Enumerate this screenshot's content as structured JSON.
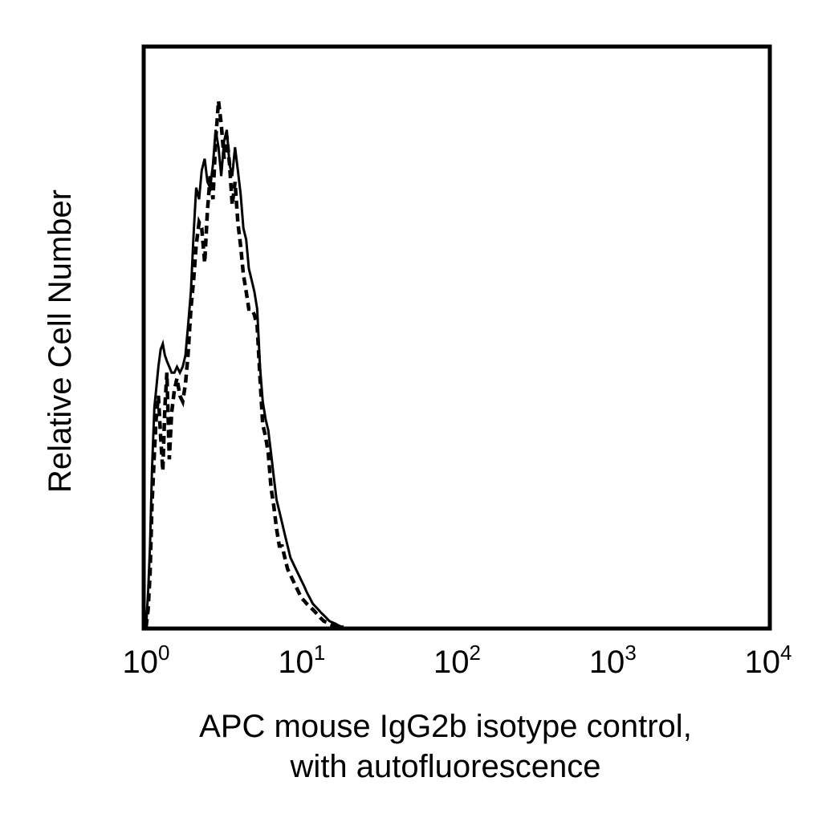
{
  "chart_data": {
    "type": "area",
    "xscale": "log",
    "xlim": [
      1,
      10000
    ],
    "ylim": [
      0,
      100
    ],
    "grid": false,
    "legend": "none",
    "xlabel_lines": [
      "APC mouse IgG2b isotype control,",
      "with autofluorescence"
    ],
    "ylabel": "Relative Cell Number",
    "yticks_shown": false,
    "xticks": [
      {
        "value": 1,
        "base": "10",
        "exp": "0"
      },
      {
        "value": 10,
        "base": "10",
        "exp": "1"
      },
      {
        "value": 100,
        "base": "10",
        "exp": "2"
      },
      {
        "value": 1000,
        "base": "10",
        "exp": "3"
      },
      {
        "value": 10000,
        "base": "10",
        "exp": "4"
      }
    ],
    "series": [
      {
        "style": "solid",
        "x": [
          1.0,
          1.03,
          1.06,
          1.09,
          1.13,
          1.16,
          1.2,
          1.24,
          1.28,
          1.32,
          1.36,
          1.41,
          1.46,
          1.52,
          1.58,
          1.65,
          1.72,
          1.79,
          1.86,
          1.94,
          2.02,
          2.1,
          2.19,
          2.28,
          2.38,
          2.48,
          2.58,
          2.69,
          2.8,
          2.92,
          3.04,
          3.17,
          3.3,
          3.44,
          3.58,
          3.73,
          3.89,
          4.05,
          4.22,
          4.4,
          4.58,
          4.77,
          4.97,
          5.18,
          5.4,
          5.62,
          5.86,
          6.1,
          6.36,
          6.62,
          6.9,
          7.19,
          7.49,
          7.8,
          8.13,
          8.47,
          8.82,
          9.19,
          9.57,
          9.97,
          10.4,
          10.8,
          11.3,
          11.8,
          12.3,
          12.8,
          13.3,
          13.9,
          14.5,
          15.1,
          15.7,
          16.4,
          17.1,
          17.8,
          18.6
        ],
        "values": [
          0,
          6,
          14,
          27,
          38,
          41,
          45,
          48,
          49,
          47,
          46,
          45,
          44,
          44,
          45,
          44,
          45,
          47,
          52,
          58,
          68,
          76,
          74,
          79,
          81,
          77,
          76,
          80,
          86,
          83,
          78,
          84,
          86,
          80,
          78,
          83,
          79,
          75,
          69,
          67,
          62,
          60,
          58,
          55,
          45,
          39,
          36,
          34,
          30,
          26,
          22,
          20,
          18,
          16,
          14,
          12,
          11,
          10,
          9,
          8,
          7,
          6,
          5,
          4,
          3.5,
          3,
          2.5,
          2,
          1.5,
          1,
          0.8,
          0.6,
          0.3,
          0.1,
          0
        ]
      },
      {
        "style": "dashed",
        "x": [
          1.0,
          1.03,
          1.06,
          1.09,
          1.13,
          1.16,
          1.2,
          1.24,
          1.28,
          1.32,
          1.36,
          1.41,
          1.46,
          1.52,
          1.58,
          1.65,
          1.72,
          1.79,
          1.86,
          1.94,
          2.02,
          2.1,
          2.19,
          2.28,
          2.38,
          2.48,
          2.58,
          2.69,
          2.8,
          2.92,
          3.04,
          3.17,
          3.3,
          3.44,
          3.58,
          3.73,
          3.89,
          4.05,
          4.22,
          4.4,
          4.58,
          4.77,
          4.97,
          5.18,
          5.4,
          5.62,
          5.86,
          6.1,
          6.36,
          6.62,
          6.9,
          7.19,
          7.49,
          7.8,
          8.13,
          8.47,
          8.82,
          9.19,
          9.57,
          9.97,
          10.4,
          10.8,
          11.3,
          11.8,
          12.3,
          12.8,
          13.3,
          13.9,
          14.5,
          15.1,
          15.7,
          16.4,
          17.1,
          17.8,
          18.6
        ],
        "values": [
          0,
          3,
          9,
          21,
          30,
          36,
          40,
          33,
          27,
          38,
          44,
          29,
          37,
          41,
          43,
          40,
          39,
          42,
          47,
          55,
          60,
          66,
          70,
          69,
          63,
          72,
          78,
          74,
          84,
          91,
          87,
          81,
          85,
          80,
          73,
          77,
          70,
          66,
          61,
          58,
          55,
          55,
          54,
          52,
          43,
          35,
          33,
          30,
          24,
          21,
          17,
          14,
          14,
          12,
          10,
          9,
          8,
          7,
          6,
          5,
          4.5,
          4,
          3.5,
          3,
          2.5,
          2,
          1.5,
          1,
          0.8,
          0.5,
          0.3,
          0.2,
          0.1,
          0,
          0
        ]
      }
    ]
  }
}
